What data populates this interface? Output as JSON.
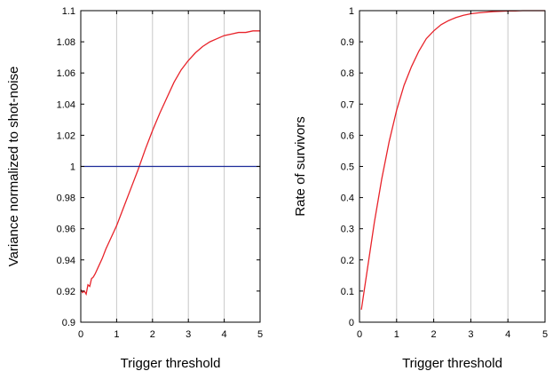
{
  "chart_data": [
    {
      "type": "line",
      "xlabel": "Trigger threshold",
      "ylabel": "Variance normalized to shot-noise",
      "xlim": [
        0,
        5
      ],
      "ylim": [
        0.9,
        1.1
      ],
      "xticks": [
        "0",
        "1",
        "2",
        "3",
        "4",
        "5"
      ],
      "yticks": [
        "0.9",
        "0.92",
        "0.94",
        "0.96",
        "0.98",
        "1",
        "1.02",
        "1.04",
        "1.06",
        "1.08",
        "1.1"
      ],
      "grid": "vertical",
      "series": [
        {
          "color": "#e8232a",
          "x": [
            0,
            0.05,
            0.1,
            0.15,
            0.2,
            0.25,
            0.3,
            0.35,
            0.4,
            0.5,
            0.6,
            0.7,
            0.8,
            1.0,
            1.2,
            1.4,
            1.6,
            1.8,
            2.0,
            2.2,
            2.4,
            2.6,
            2.8,
            3.0,
            3.2,
            3.4,
            3.6,
            3.8,
            4.0,
            4.2,
            4.4,
            4.6,
            4.8,
            5.0
          ],
          "y": [
            0.921,
            0.919,
            0.92,
            0.918,
            0.924,
            0.923,
            0.928,
            0.929,
            0.931,
            0.936,
            0.941,
            0.947,
            0.952,
            0.962,
            0.974,
            0.986,
            0.998,
            1.011,
            1.023,
            1.034,
            1.044,
            1.054,
            1.062,
            1.068,
            1.073,
            1.077,
            1.08,
            1.082,
            1.084,
            1.085,
            1.086,
            1.086,
            1.087,
            1.087
          ]
        },
        {
          "color": "#1c2a99",
          "x": [
            0,
            5
          ],
          "y": [
            1.0,
            1.0
          ]
        }
      ]
    },
    {
      "type": "line",
      "xlabel": "Trigger threshold",
      "ylabel": "Rate of survivors",
      "xlim": [
        0,
        5
      ],
      "ylim": [
        0,
        1
      ],
      "xticks": [
        "0",
        "1",
        "2",
        "3",
        "4",
        "5"
      ],
      "yticks": [
        "0",
        "0.1",
        "0.2",
        "0.3",
        "0.4",
        "0.5",
        "0.6",
        "0.7",
        "0.8",
        "0.9",
        "1"
      ],
      "grid": "vertical",
      "series": [
        {
          "color": "#e8232a",
          "x": [
            0.05,
            0.1,
            0.2,
            0.3,
            0.4,
            0.5,
            0.6,
            0.7,
            0.8,
            1.0,
            1.2,
            1.4,
            1.6,
            1.8,
            2.0,
            2.2,
            2.4,
            2.6,
            2.8,
            3.0,
            3.2,
            3.4,
            3.6,
            3.8,
            4.0,
            4.2,
            4.4,
            4.6,
            4.8,
            5.0
          ],
          "y": [
            0.04,
            0.08,
            0.16,
            0.24,
            0.32,
            0.39,
            0.46,
            0.52,
            0.58,
            0.68,
            0.76,
            0.82,
            0.87,
            0.91,
            0.935,
            0.955,
            0.968,
            0.978,
            0.985,
            0.99,
            0.993,
            0.995,
            0.997,
            0.998,
            0.999,
            0.999,
            1.0,
            1.0,
            1.0,
            1.0
          ]
        }
      ]
    }
  ]
}
